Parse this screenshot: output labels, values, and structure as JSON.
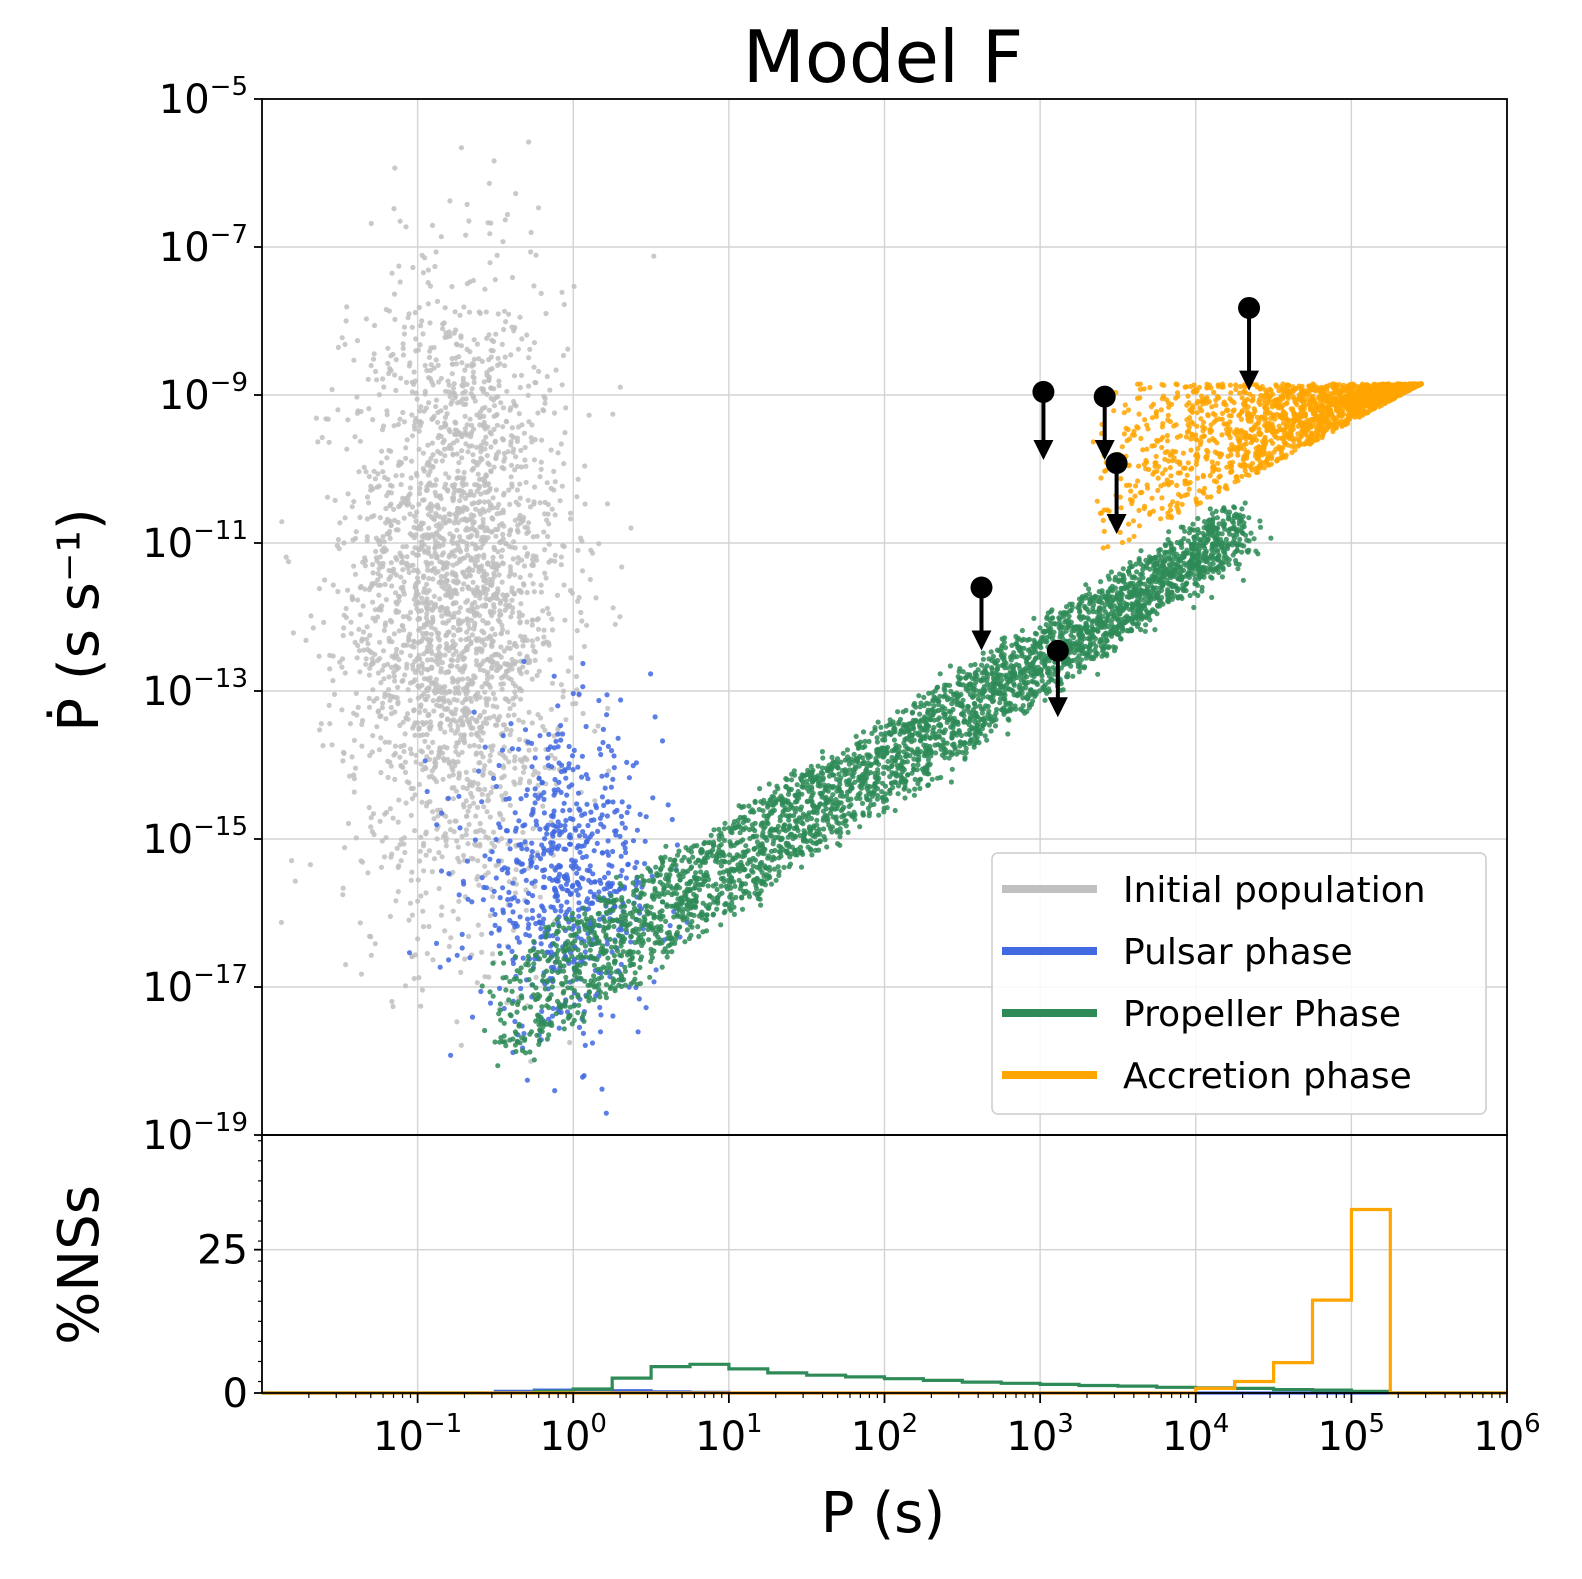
{
  "chart_data": [
    {
      "type": "scatter",
      "title": "Model F",
      "ylabel": "Ṗ (s s⁻¹)",
      "xscale": "log",
      "yscale": "log",
      "xlim": [
        0.01,
        1000000
      ],
      "ylim": [
        1e-19,
        1e-05
      ],
      "y_ticks": [
        {
          "value": 1e-05,
          "base": "10",
          "exp": "−5"
        },
        {
          "value": 1e-07,
          "base": "10",
          "exp": "−7"
        },
        {
          "value": 1e-09,
          "base": "10",
          "exp": "−9"
        },
        {
          "value": 1e-11,
          "base": "10",
          "exp": "−11"
        },
        {
          "value": 1e-13,
          "base": "10",
          "exp": "−13"
        },
        {
          "value": 1e-15,
          "base": "10",
          "exp": "−15"
        },
        {
          "value": 1e-17,
          "base": "10",
          "exp": "−17"
        },
        {
          "value": 1e-19,
          "base": "10",
          "exp": "−19"
        }
      ],
      "grid": true,
      "legend_position": "lower-right",
      "series": [
        {
          "name": "Initial population",
          "color": "#c0c0c0",
          "clouds": [
            {
              "logP_center": -0.75,
              "logPdot_center": -11.7,
              "logP_sd": 0.35,
              "logPdot_sd": 2.1,
              "count": 2600
            }
          ]
        },
        {
          "name": "Pulsar phase",
          "color": "#4169e1",
          "clouds": [
            {
              "logP_center": -0.05,
              "logPdot_center": -15.6,
              "logP_sd": 0.3,
              "logPdot_sd": 1.0,
              "count": 700
            }
          ]
        },
        {
          "name": "Propeller Phase",
          "color": "#2e8b57",
          "band": {
            "logP_range": [
              -0.45,
              4.3
            ],
            "logPdot_at_start": -17.6,
            "logPdot_at_end": -10.9,
            "width_dex": 0.9,
            "count": 3600
          }
        },
        {
          "name": "Accretion phase",
          "color": "#ffa500",
          "band": {
            "logP_range": [
              3.3,
              5.45
            ],
            "logPdot_upper": -8.85,
            "logPdot_lower_at_start": -11.3,
            "logPdot_lower_at_end": -8.85,
            "count": 1800
          }
        }
      ],
      "upper_limits": [
        {
          "P": 22000,
          "Pdot": 1.5e-08,
          "arrow_to": 1.3e-09
        },
        {
          "P": 1050,
          "Pdot": 1.1e-09,
          "arrow_to": 1.5e-10
        },
        {
          "P": 2600,
          "Pdot": 9.5e-10,
          "arrow_to": 1.5e-10
        },
        {
          "P": 3100,
          "Pdot": 1.2e-10,
          "arrow_to": 1.5e-11
        },
        {
          "P": 420,
          "Pdot": 2.5e-12,
          "arrow_to": 4e-13
        },
        {
          "P": 1300,
          "Pdot": 3.5e-13,
          "arrow_to": 5e-14
        }
      ]
    },
    {
      "type": "histogram",
      "ylabel": "%NSs",
      "xlabel": "P (s)",
      "xscale": "log",
      "xlim": [
        0.01,
        1000000
      ],
      "ylim": [
        0,
        45
      ],
      "y_ticks": [
        0,
        25
      ],
      "x_ticks": [
        {
          "value": 0.1,
          "base": "10",
          "exp": "−1"
        },
        {
          "value": 1,
          "base": "10",
          "exp": "0"
        },
        {
          "value": 10,
          "base": "10",
          "exp": "1"
        },
        {
          "value": 100,
          "base": "10",
          "exp": "2"
        },
        {
          "value": 1000,
          "base": "10",
          "exp": "3"
        },
        {
          "value": 10000,
          "base": "10",
          "exp": "4"
        },
        {
          "value": 100000,
          "base": "10",
          "exp": "5"
        },
        {
          "value": 1000000,
          "base": "10",
          "exp": "6"
        }
      ],
      "bin_log_edges": [
        -1.0,
        -0.75,
        -0.5,
        -0.25,
        0.0,
        0.25,
        0.5,
        0.75,
        1.0,
        1.25,
        1.5,
        1.75,
        2.0,
        2.25,
        2.5,
        2.75,
        3.0,
        3.25,
        3.5,
        3.75,
        4.0,
        4.25,
        4.5,
        4.75,
        5.0,
        5.25,
        5.5
      ],
      "series": [
        {
          "name": "Pulsar phase",
          "color": "#4169e1",
          "values": [
            0,
            0,
            0.3,
            0.5,
            0.6,
            0.4,
            0.2,
            0.1,
            0,
            0,
            0,
            0,
            0,
            0,
            0,
            0,
            0,
            0,
            0,
            0,
            0,
            0,
            0,
            0,
            0,
            0
          ]
        },
        {
          "name": "Propeller Phase",
          "color": "#2e8b57",
          "values": [
            0,
            0,
            0,
            0.3,
            0.7,
            2.6,
            4.6,
            5.0,
            4.2,
            3.5,
            3.1,
            2.8,
            2.5,
            2.2,
            1.9,
            1.7,
            1.5,
            1.3,
            1.2,
            1.0,
            0.9,
            0.8,
            0.6,
            0.5,
            0.3,
            0
          ]
        },
        {
          "name": "Accretion phase",
          "color": "#ffa500",
          "values": [
            0,
            0,
            0,
            0,
            0,
            0,
            0,
            0,
            0,
            0,
            0,
            0,
            0,
            0,
            0,
            0,
            0,
            0,
            0,
            0,
            0.8,
            2.0,
            5.3,
            16.2,
            32.0,
            0
          ]
        }
      ]
    }
  ]
}
